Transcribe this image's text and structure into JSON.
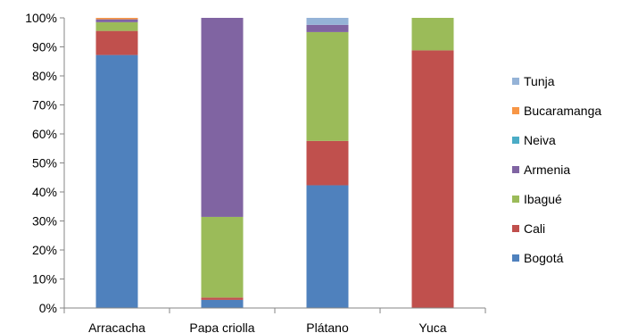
{
  "chart_data": {
    "type": "bar",
    "stacked": true,
    "percent": true,
    "categories": [
      "Arracacha",
      "Papa criolla",
      "Plátano",
      "Yuca"
    ],
    "ylim": [
      0,
      100
    ],
    "yticks": [
      0,
      10,
      20,
      30,
      40,
      50,
      60,
      70,
      80,
      90,
      100
    ],
    "ytick_labels": [
      "0%",
      "10%",
      "20%",
      "30%",
      "40%",
      "50%",
      "60%",
      "70%",
      "80%",
      "90%",
      "100%"
    ],
    "grid": false,
    "legend": "right",
    "series": [
      {
        "name": "Bogotá",
        "color": "#4F81BD",
        "values": [
          87.2,
          2.8,
          42.3,
          0
        ]
      },
      {
        "name": "Cali",
        "color": "#C0504D",
        "values": [
          8.3,
          0.8,
          15.3,
          88.8
        ]
      },
      {
        "name": "Ibagué",
        "color": "#9BBB59",
        "values": [
          3.0,
          27.8,
          37.5,
          11.2
        ]
      },
      {
        "name": "Armenia",
        "color": "#8064A2",
        "values": [
          1.0,
          68.6,
          2.5,
          0
        ]
      },
      {
        "name": "Neiva",
        "color": "#4BACC6",
        "values": [
          0,
          0,
          0,
          0
        ]
      },
      {
        "name": "Bucaramanga",
        "color": "#F79646",
        "values": [
          0.5,
          0,
          0,
          0
        ]
      },
      {
        "name": "Tunja",
        "color": "#95B3D7",
        "values": [
          0,
          0,
          2.4,
          0
        ]
      }
    ]
  }
}
